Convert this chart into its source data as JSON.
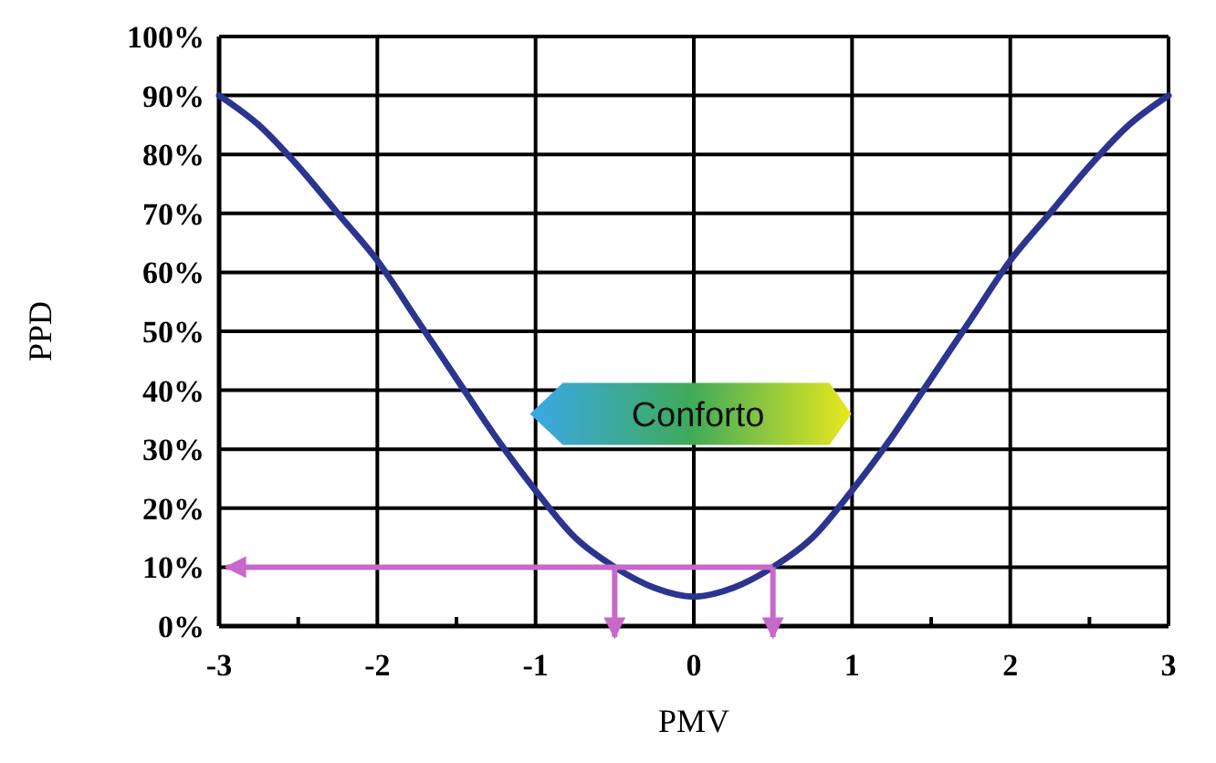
{
  "chart_data": {
    "type": "line",
    "xlabel": "PMV",
    "ylabel": "PPD",
    "x": [
      -3,
      -2.75,
      -2.5,
      -2.25,
      -2,
      -1.75,
      -1.5,
      -1.25,
      -1,
      -0.75,
      -0.5,
      -0.25,
      0,
      0.25,
      0.5,
      0.75,
      1,
      1.25,
      1.5,
      1.75,
      2,
      2.25,
      2.5,
      2.75,
      3
    ],
    "series": [
      {
        "color": "#2b3590",
        "values": [
          90,
          85,
          78,
          70,
          62,
          52,
          42,
          32,
          23,
          15,
          10,
          6.5,
          5,
          6.5,
          10,
          15,
          23,
          32,
          42,
          52,
          62,
          70,
          78,
          85,
          90
        ]
      }
    ],
    "xlim": [
      -3,
      3
    ],
    "xticks": [
      -3,
      -2,
      -1,
      0,
      1,
      2,
      3
    ],
    "ylim": [
      0,
      100
    ],
    "yticks": [
      {
        "value": 0,
        "label": "0%"
      },
      {
        "value": 10,
        "label": "10%"
      },
      {
        "value": 20,
        "label": "20%"
      },
      {
        "value": 30,
        "label": "30%"
      },
      {
        "value": 40,
        "label": "40%"
      },
      {
        "value": 50,
        "label": "50%"
      },
      {
        "value": 60,
        "label": "60%"
      },
      {
        "value": 70,
        "label": "70%"
      },
      {
        "value": 80,
        "label": "80%"
      },
      {
        "value": 90,
        "label": "90%"
      },
      {
        "value": 100,
        "label": "100%"
      }
    ],
    "grid": true,
    "marker": "none",
    "line_style": "solid",
    "ref_lines": [
      {
        "axis": "y",
        "value": 10,
        "color": "#c868c8"
      },
      {
        "axis": "x",
        "value": -0.5,
        "color": "#c868c8"
      },
      {
        "axis": "x",
        "value": 0.5,
        "color": "#c868c8"
      }
    ],
    "annotations": [
      "Conforto"
    ]
  }
}
